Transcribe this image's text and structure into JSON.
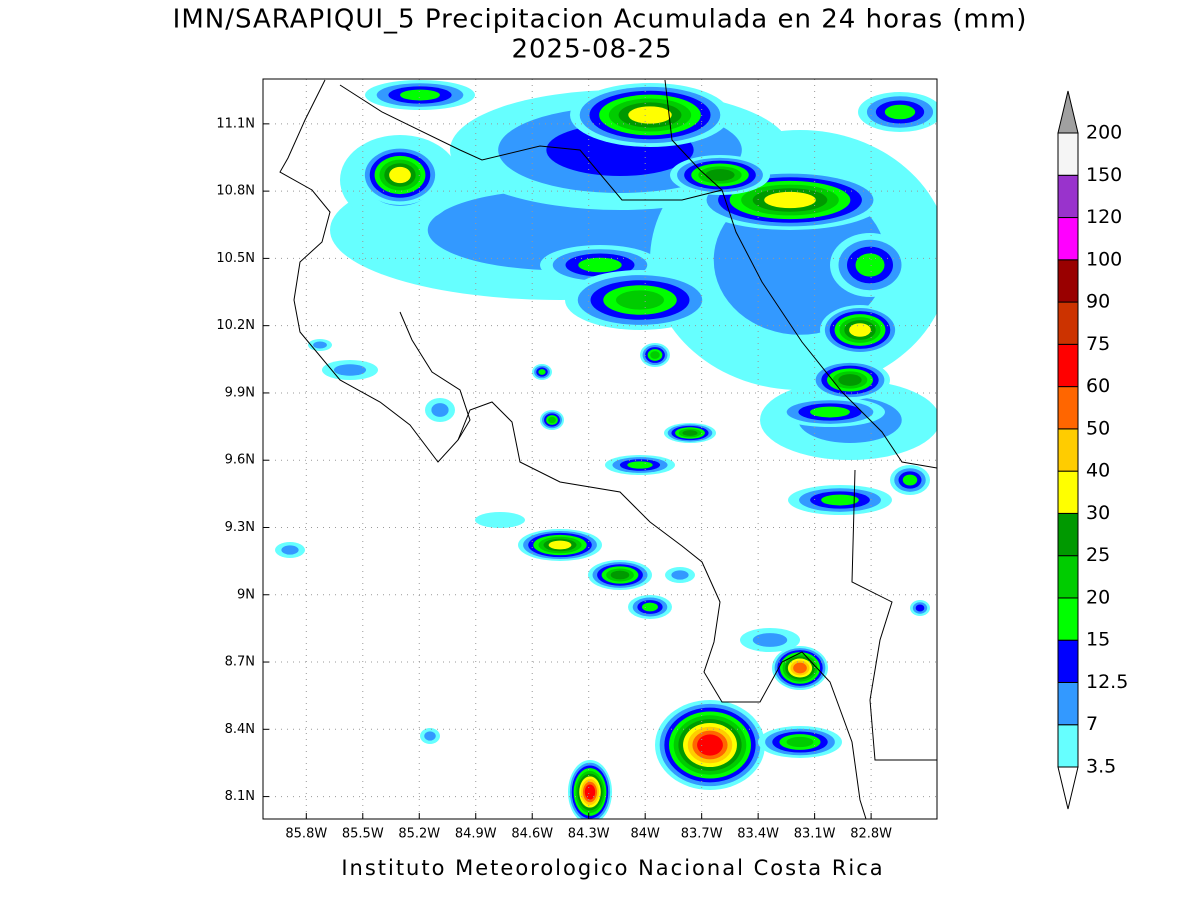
{
  "title": "IMN/SARAPIQUI_5 Precipitacion Acumulada en 24 horas (mm)",
  "subtitle": "2025-08-25",
  "map": {
    "latlim": [
      8.0,
      11.3
    ],
    "lonlim": [
      -86.03,
      -82.45
    ],
    "lat_ticks": [
      {
        "value": 11.1,
        "label": "11.1N"
      },
      {
        "value": 10.8,
        "label": "10.8N"
      },
      {
        "value": 10.5,
        "label": "10.5N"
      },
      {
        "value": 10.2,
        "label": "10.2N"
      },
      {
        "value": 9.9,
        "label": "9.9N"
      },
      {
        "value": 9.6,
        "label": "9.6N"
      },
      {
        "value": 9.3,
        "label": "9.3N"
      },
      {
        "value": 9,
        "label": "9N"
      },
      {
        "value": 8.7,
        "label": "8.7N"
      },
      {
        "value": 8.4,
        "label": "8.4N"
      },
      {
        "value": 8.1,
        "label": "8.1N"
      }
    ],
    "lon_ticks": [
      {
        "value": -85.8,
        "label": "85.8W"
      },
      {
        "value": -85.5,
        "label": "85.5W"
      },
      {
        "value": -85.2,
        "label": "85.2W"
      },
      {
        "value": -84.9,
        "label": "84.9W"
      },
      {
        "value": -84.6,
        "label": "84.6W"
      },
      {
        "value": -84.3,
        "label": "84.3W"
      },
      {
        "value": -84,
        "label": "84W"
      },
      {
        "value": -83.7,
        "label": "83.7W"
      },
      {
        "value": -83.4,
        "label": "83.4W"
      },
      {
        "value": -83.1,
        "label": "83.1W"
      },
      {
        "value": -82.8,
        "label": "82.8W"
      }
    ]
  },
  "colorbar": {
    "labels": [
      3.5,
      7,
      12.5,
      15,
      20,
      25,
      30,
      40,
      50,
      60,
      75,
      90,
      100,
      120,
      150,
      200
    ],
    "colors": [
      "#66ffff",
      "#3399ff",
      "#0000ff",
      "#00ff00",
      "#00cc00",
      "#009900",
      "#ffff00",
      "#ffcc00",
      "#ff6600",
      "#ff0000",
      "#cc3300",
      "#990000",
      "#ff00ff",
      "#9933cc",
      "#f5f5f5"
    ],
    "over_color": "#a0a0a0",
    "under_color": "#ffffff"
  },
  "footer": "Instituto Meteorologico Nacional Costa Rica"
}
